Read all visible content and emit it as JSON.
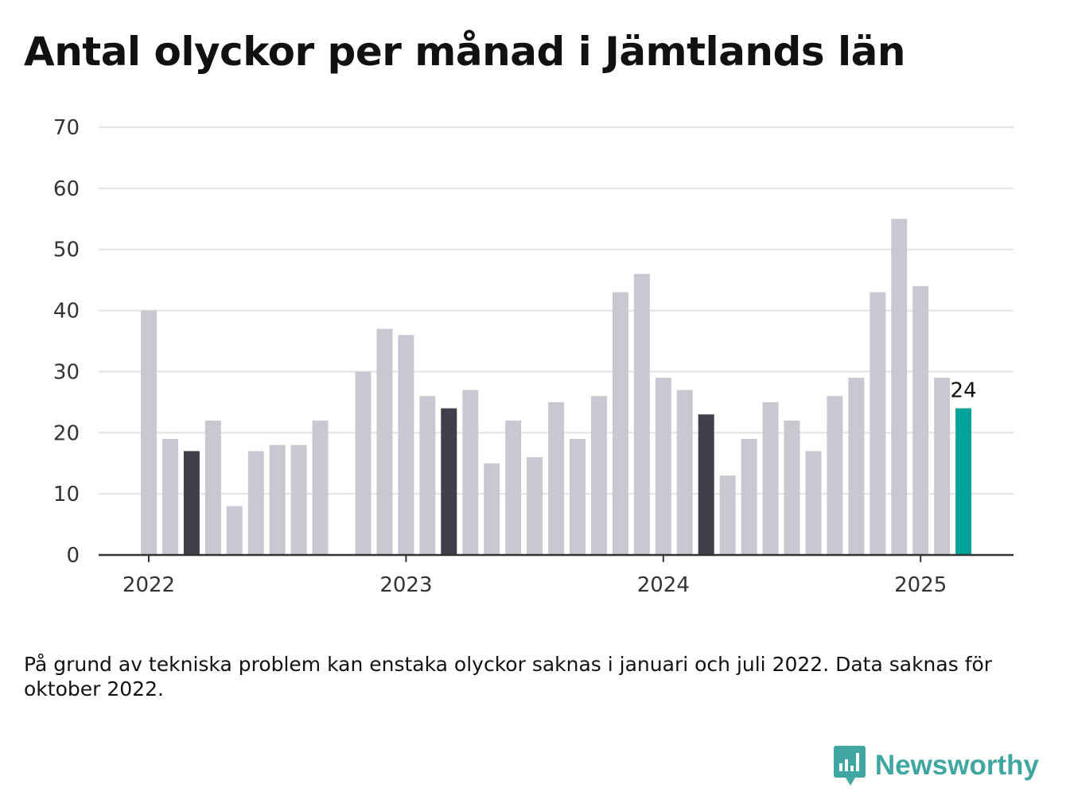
{
  "title": "Antal olyckor per månad i Jämtlands län",
  "note": "På grund av tekniska problem kan enstaka olyckor saknas i januari och juli 2022. Data saknas för oktober 2022.",
  "brand": "Newsworthy",
  "colors": {
    "bar_default": "#c9c8d1",
    "bar_highlight": "#403f4c",
    "bar_latest": "#00a29a",
    "grid": "#e2e2e2",
    "axis": "#333333",
    "brand": "#40a6a0"
  },
  "chart_data": {
    "type": "bar",
    "title": "Antal olyckor per månad i Jämtlands län",
    "xlabel": "",
    "ylabel": "",
    "ylim": [
      0,
      70
    ],
    "yticks": [
      0,
      10,
      20,
      30,
      40,
      50,
      60,
      70
    ],
    "grid": true,
    "x_tick_labels": [
      "2022",
      "2023",
      "2024",
      "2025"
    ],
    "categories": [
      "2022-01",
      "2022-02",
      "2022-03",
      "2022-04",
      "2022-05",
      "2022-06",
      "2022-07",
      "2022-08",
      "2022-09",
      "2022-10",
      "2022-11",
      "2022-12",
      "2023-01",
      "2023-02",
      "2023-03",
      "2023-04",
      "2023-05",
      "2023-06",
      "2023-07",
      "2023-08",
      "2023-09",
      "2023-10",
      "2023-11",
      "2023-12",
      "2024-01",
      "2024-02",
      "2024-03",
      "2024-04",
      "2024-05",
      "2024-06",
      "2024-07",
      "2024-08",
      "2024-09",
      "2024-10",
      "2024-11",
      "2024-12",
      "2025-01",
      "2025-02",
      "2025-03"
    ],
    "values": [
      40,
      19,
      17,
      22,
      8,
      17,
      18,
      18,
      22,
      null,
      30,
      37,
      36,
      26,
      24,
      27,
      15,
      22,
      16,
      25,
      19,
      26,
      43,
      46,
      29,
      27,
      23,
      13,
      19,
      25,
      22,
      17,
      26,
      29,
      43,
      55,
      44,
      29,
      24
    ],
    "highlighted": [
      "2022-03",
      "2023-03",
      "2024-03"
    ],
    "latest": "2025-03",
    "data_labels": [
      {
        "category": "2025-03",
        "text": "24"
      }
    ]
  }
}
